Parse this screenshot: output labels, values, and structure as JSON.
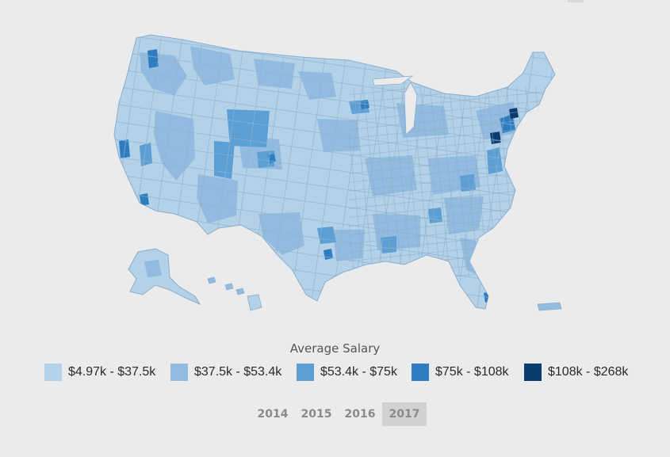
{
  "legend": {
    "title": "Average Salary",
    "items": [
      {
        "label": "$4.97k - $37.5k",
        "color": "#b4d2e7"
      },
      {
        "label": "$37.5k - $53.4k",
        "color": "#93bbdf"
      },
      {
        "label": "$53.4k - $75k",
        "color": "#5b9fd4"
      },
      {
        "label": "$75k - $108k",
        "color": "#2d7dc0"
      },
      {
        "label": "$108k - $268k",
        "color": "#0a3c6e"
      }
    ]
  },
  "years": {
    "options": [
      "2014",
      "2015",
      "2016",
      "2017"
    ],
    "selected": "2017"
  },
  "colors": {
    "background": "#ebebeb",
    "county_border": "#7fa6c9",
    "active_year_bg": "#d2d2d2"
  }
}
